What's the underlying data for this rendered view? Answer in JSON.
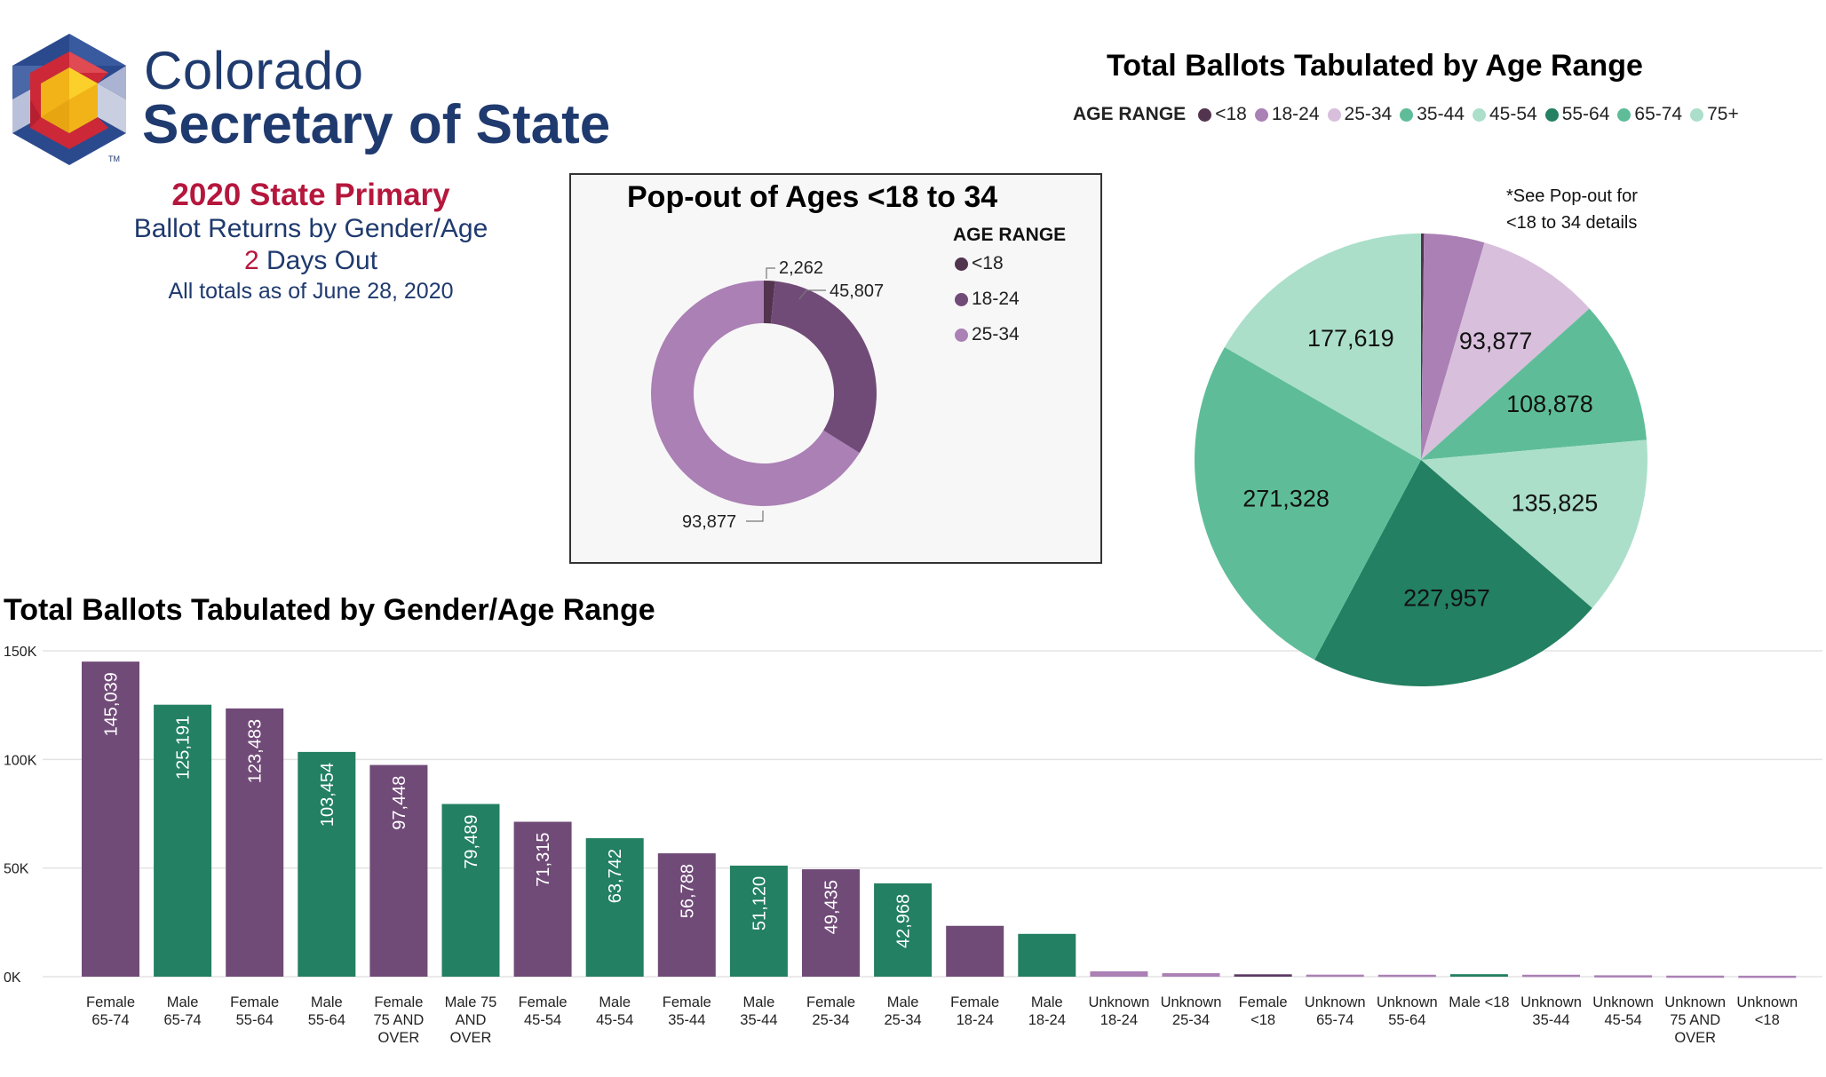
{
  "header": {
    "brand_line1": "Colorado",
    "brand_line2": "Secretary of State",
    "trademark": "TM",
    "election": "2020 State Primary",
    "report": "Ballot Returns by Gender/Age",
    "days_number": "2",
    "days_text": " Days Out",
    "as_of": "All totals as of June 28, 2020"
  },
  "colors": {
    "brand_blue": "#1f3a6e",
    "brand_red": "#b5173d",
    "female": "#714b78",
    "male": "#238062",
    "unknown": "#ab80b5",
    "age_lt18": "#53344f",
    "age_18_24": "#ab80b5",
    "age_25_34": "#d8bfdc",
    "age_35_44": "#5ebd98",
    "age_45_54": "#abdfca",
    "age_55_64": "#238062",
    "age_65_74": "#5ebd98",
    "age_75_plus": "#abdfca"
  },
  "chart_data": [
    {
      "id": "popout",
      "type": "pie",
      "variant": "donut",
      "title": "Pop-out of Ages <18 to 34",
      "legend_title": "AGE RANGE",
      "legend_position": "right",
      "categories": [
        "<18",
        "18-24",
        "25-34"
      ],
      "values": [
        2262,
        45807,
        93877
      ],
      "labels": [
        "2,262",
        "45,807",
        "93,877"
      ],
      "colors": [
        "#53344f",
        "#714b78",
        "#ab80b5"
      ]
    },
    {
      "id": "age-pie",
      "type": "pie",
      "title": "Total Ballots Tabulated by Age Range",
      "legend_title": "AGE RANGE",
      "legend_position": "top",
      "note_line1": "*See Pop-out for",
      "note_line2": "<18 to 34 details",
      "categories": [
        "<18",
        "18-24",
        "25-34",
        "35-44",
        "45-54",
        "55-64",
        "65-74",
        "75+"
      ],
      "values": [
        2262,
        45807,
        93877,
        108878,
        135825,
        227957,
        271328,
        177619
      ],
      "labels": [
        "",
        "",
        "93,877",
        "108,878",
        "135,825",
        "227,957",
        "271,328",
        "177,619"
      ],
      "colors": [
        "#53344f",
        "#ab80b5",
        "#d8bfdc",
        "#5ebd98",
        "#abdfca",
        "#238062",
        "#5ebd98",
        "#abdfca"
      ]
    },
    {
      "id": "gender-age-bar",
      "type": "bar",
      "title": "Total Ballots Tabulated by Gender/Age Range",
      "xlabel": "",
      "ylabel": "",
      "ylim": [
        0,
        150000
      ],
      "yticks": [
        0,
        50000,
        100000,
        150000
      ],
      "ytick_labels": [
        "0K",
        "50K",
        "100K",
        "150K"
      ],
      "grid": true,
      "categories": [
        [
          "Female",
          "65-74"
        ],
        [
          "Male",
          "65-74"
        ],
        [
          "Female",
          "55-64"
        ],
        [
          "Male",
          "55-64"
        ],
        [
          "Female",
          "75 AND",
          "OVER"
        ],
        [
          "Male 75",
          "AND",
          "OVER"
        ],
        [
          "Female",
          "45-54"
        ],
        [
          "Male",
          "45-54"
        ],
        [
          "Female",
          "35-44"
        ],
        [
          "Male",
          "35-44"
        ],
        [
          "Female",
          "25-34"
        ],
        [
          "Male",
          "25-34"
        ],
        [
          "Female",
          "18-24"
        ],
        [
          "Male",
          "18-24"
        ],
        [
          "Unknown",
          "18-24"
        ],
        [
          "Unknown",
          "25-34"
        ],
        [
          "Female",
          "<18"
        ],
        [
          "Unknown",
          "65-74"
        ],
        [
          "Unknown",
          "55-64"
        ],
        [
          "Male <18"
        ],
        [
          "Unknown",
          "35-44"
        ],
        [
          "Unknown",
          "45-54"
        ],
        [
          "Unknown",
          "75 AND",
          "OVER"
        ],
        [
          "Unknown",
          "<18"
        ]
      ],
      "values": [
        145039,
        125191,
        123483,
        103454,
        97448,
        79489,
        71315,
        63742,
        56788,
        51120,
        49435,
        42968,
        23400,
        19700,
        2450,
        1600,
        1100,
        950,
        900,
        1150,
        900,
        650,
        500,
        450
      ],
      "data_labels": [
        "145,039",
        "125,191",
        "123,483",
        "103,454",
        "97,448",
        "79,489",
        "71,315",
        "63,742",
        "56,788",
        "51,120",
        "49,435",
        "42,968",
        "",
        "",
        "",
        "",
        "",
        "",
        "",
        "",
        "",
        "",
        "",
        ""
      ],
      "bar_colors": [
        "#714b78",
        "#238062",
        "#714b78",
        "#238062",
        "#714b78",
        "#238062",
        "#714b78",
        "#238062",
        "#714b78",
        "#238062",
        "#714b78",
        "#238062",
        "#714b78",
        "#238062",
        "#ab80b5",
        "#ab80b5",
        "#5b3a63",
        "#ab80b5",
        "#ab80b5",
        "#238062",
        "#ab80b5",
        "#ab80b5",
        "#ab80b5",
        "#ab80b5"
      ]
    }
  ]
}
